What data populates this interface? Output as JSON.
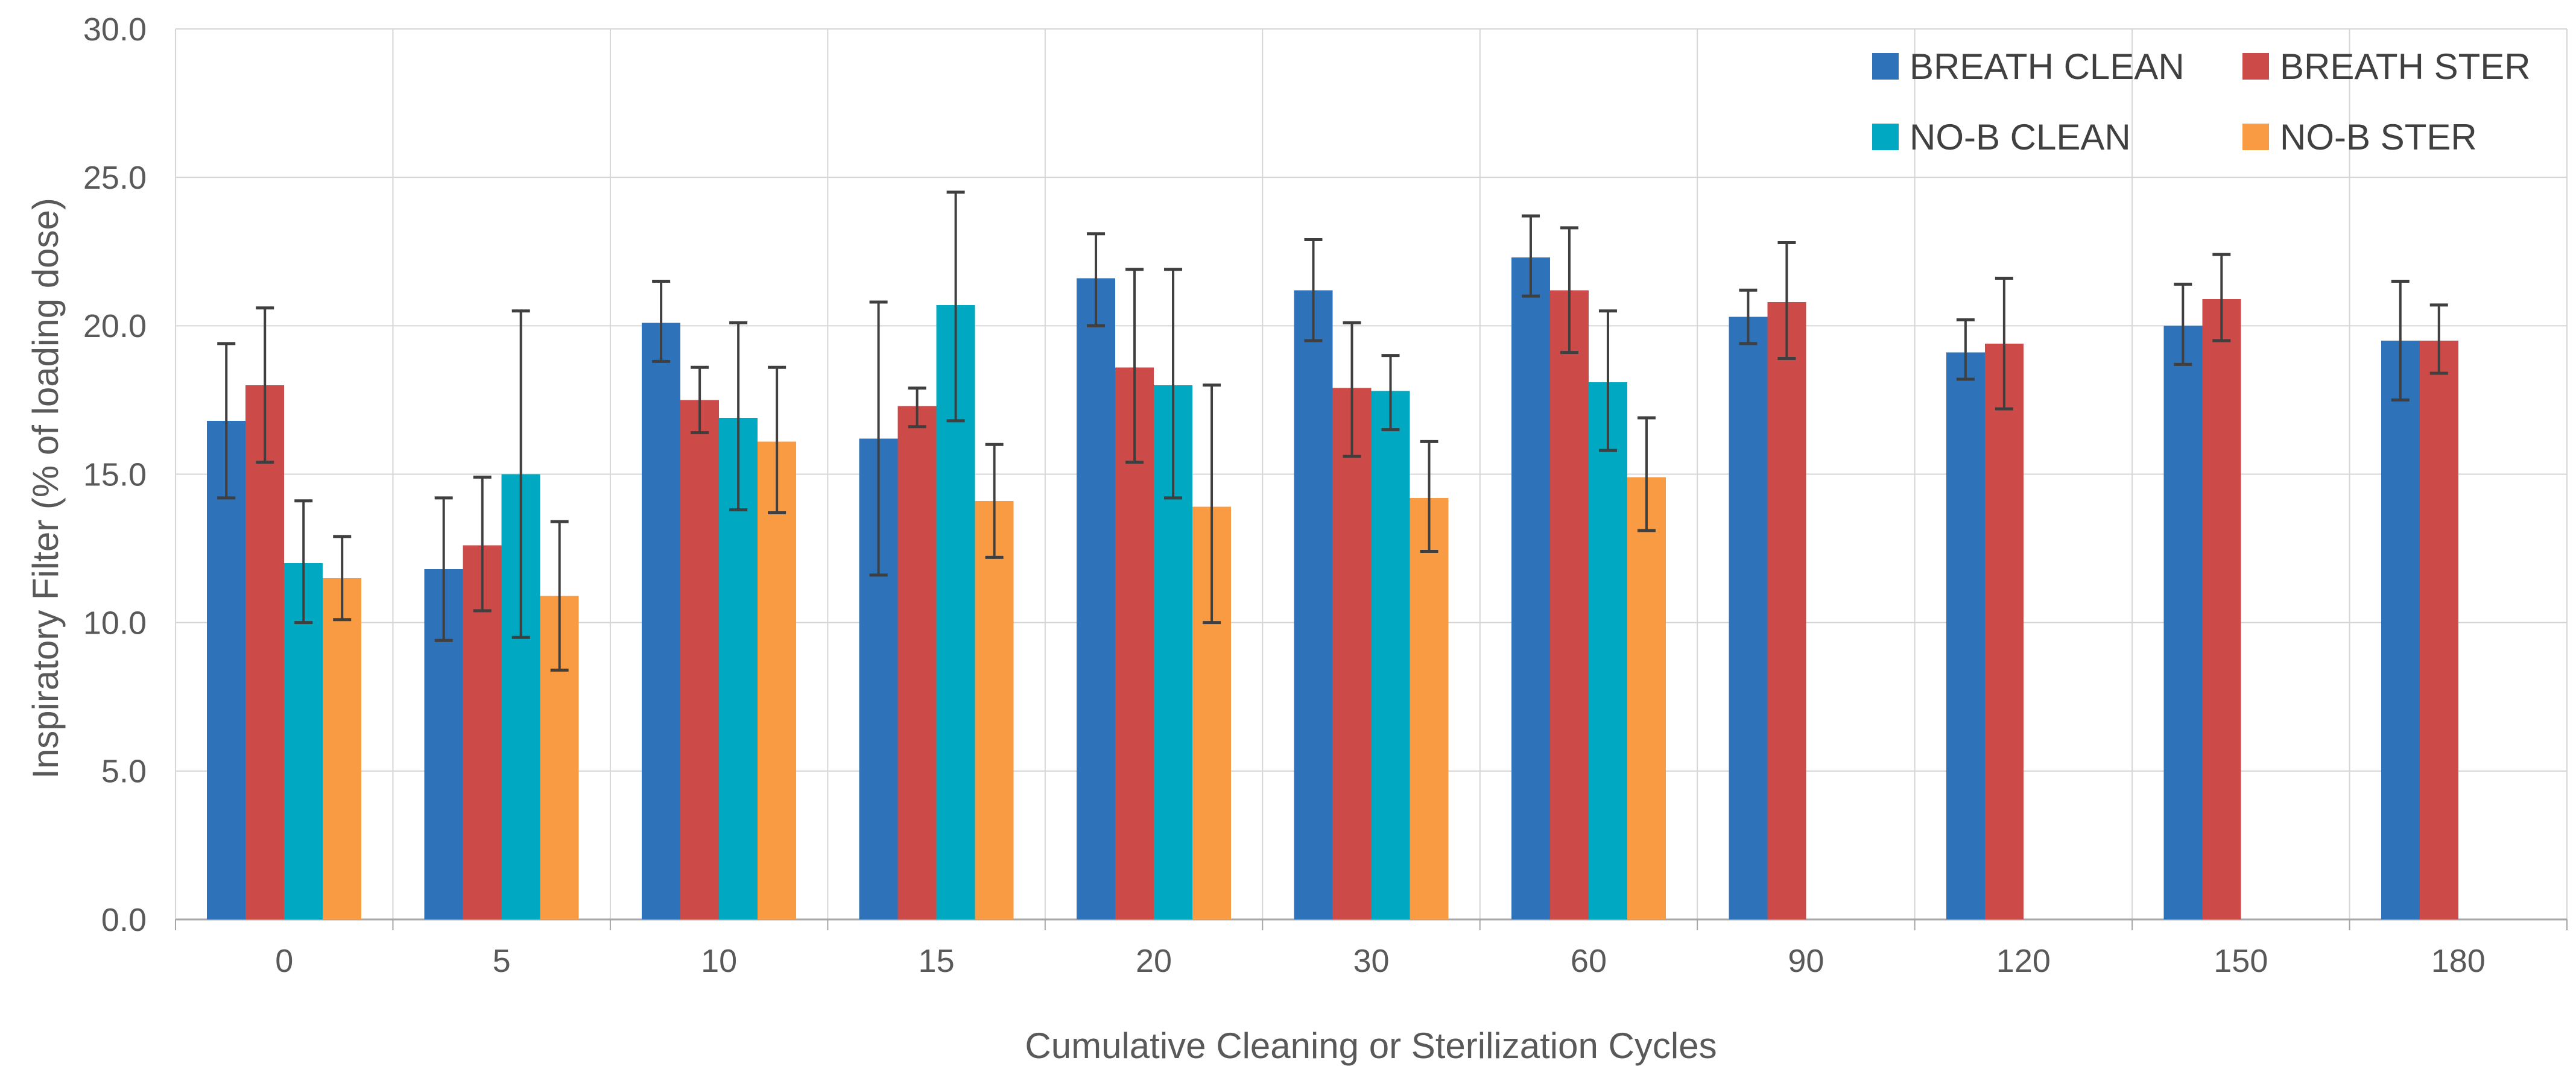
{
  "chart_data": {
    "type": "bar",
    "title": "",
    "xlabel": "Cumulative Cleaning or Sterilization Cycles",
    "ylabel": "Inspiratory Filter (% of loading dose)",
    "ylim": [
      0,
      30
    ],
    "y_tick_step": 5,
    "y_tick_labels": [
      "0.0",
      "5.0",
      "10.0",
      "15.0",
      "20.0",
      "25.0",
      "30.0"
    ],
    "grid": true,
    "legend_position": "top-right-inside",
    "categories": [
      "0",
      "5",
      "10",
      "15",
      "20",
      "30",
      "60",
      "90",
      "120",
      "150",
      "180"
    ],
    "series": [
      {
        "name": "BREATH CLEAN",
        "color": "#2E73B9",
        "values": [
          16.8,
          11.8,
          20.1,
          16.2,
          21.6,
          21.2,
          22.3,
          20.3,
          19.1,
          20.0,
          19.5
        ],
        "err_lo": [
          14.2,
          9.4,
          18.8,
          11.6,
          20.0,
          19.5,
          21.0,
          19.4,
          18.2,
          18.7,
          17.5
        ],
        "err_hi": [
          19.4,
          14.2,
          21.5,
          20.8,
          23.1,
          22.9,
          23.7,
          21.2,
          20.2,
          21.4,
          21.5
        ]
      },
      {
        "name": "BREATH STER",
        "color": "#CC4B49",
        "values": [
          18.0,
          12.6,
          17.5,
          17.3,
          18.6,
          17.9,
          21.2,
          20.8,
          19.4,
          20.9,
          19.5
        ],
        "err_lo": [
          15.4,
          10.4,
          16.4,
          16.6,
          15.4,
          15.6,
          19.1,
          18.9,
          17.2,
          19.5,
          18.4
        ],
        "err_hi": [
          20.6,
          14.9,
          18.6,
          17.9,
          21.9,
          20.1,
          23.3,
          22.8,
          21.6,
          22.4,
          20.7
        ]
      },
      {
        "name": "NO-B CLEAN",
        "color": "#00A9C1",
        "values": [
          12.0,
          15.0,
          16.9,
          20.7,
          18.0,
          17.8,
          18.1,
          null,
          null,
          null,
          null
        ],
        "err_lo": [
          10.0,
          9.5,
          13.8,
          16.8,
          14.2,
          16.5,
          15.8,
          null,
          null,
          null,
          null
        ],
        "err_hi": [
          14.1,
          20.5,
          20.1,
          24.5,
          21.9,
          19.0,
          20.5,
          null,
          null,
          null,
          null
        ]
      },
      {
        "name": "NO-B STER",
        "color": "#F89B42",
        "values": [
          11.5,
          10.9,
          16.1,
          14.1,
          13.9,
          14.2,
          14.9,
          null,
          null,
          null,
          null
        ],
        "err_lo": [
          10.1,
          8.4,
          13.7,
          12.2,
          10.0,
          12.4,
          13.1,
          null,
          null,
          null,
          null
        ],
        "err_hi": [
          12.9,
          13.4,
          18.6,
          16.0,
          18.0,
          16.1,
          16.9,
          null,
          null,
          null,
          null
        ]
      }
    ],
    "style": {
      "grid_color": "#D6D6D6",
      "border_color": "#D6D6D6",
      "axis_line_color": "#A6A6A6",
      "error_bar_color": "#3F3F3F",
      "tick_text_color": "#595959",
      "legend_text_color": "#404040",
      "background": "#FFFFFF"
    }
  }
}
